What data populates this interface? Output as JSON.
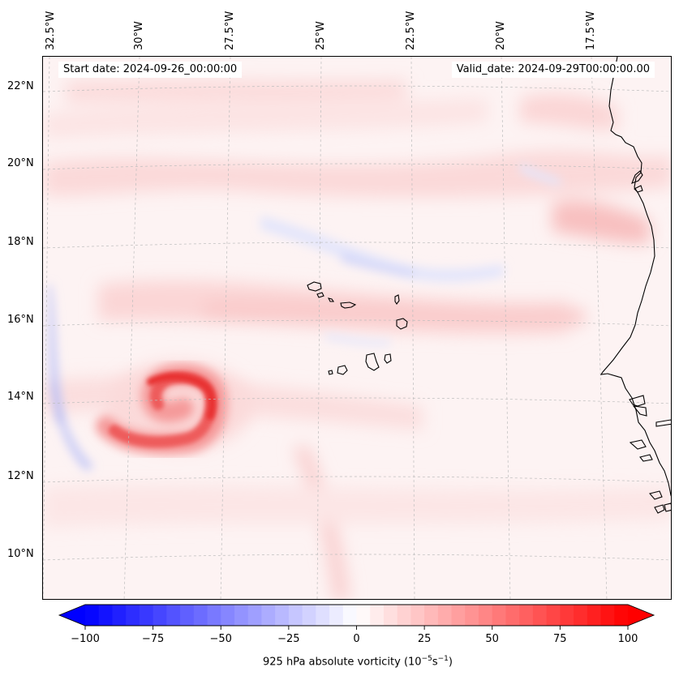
{
  "header": {
    "start_date": "Start date: 2024-09-26_00:00:00",
    "valid_date": "Valid_date: 2024-09-29T00:00:00.00"
  },
  "axes": {
    "longitude_labels": [
      "32.5°W",
      "30°W",
      "27.5°W",
      "25°W",
      "22.5°W",
      "20°W",
      "17.5°W"
    ],
    "latitude_labels": [
      "22°N",
      "20°N",
      "18°N",
      "16°N",
      "14°N",
      "12°N",
      "10°N"
    ]
  },
  "colorbar": {
    "label_prefix": "925 hPa absolute vorticity (10",
    "exp1": "−5",
    "unit": "s",
    "exp2": "−1",
    "label_suffix": ")",
    "ticks": [
      "−100",
      "−75",
      "−50",
      "−25",
      "0",
      "25",
      "50",
      "75",
      "100"
    ],
    "min": -100,
    "max": 100,
    "levels": 40,
    "colors": {
      "negative": "#0000ff",
      "neutral": "#ffffff",
      "positive": "#ff0000"
    }
  },
  "features": {
    "vortex": "positive vorticity swirl near 13.5°N 29.5°W",
    "islands": "Cape Verde Islands",
    "coastline": "West African coast"
  }
}
